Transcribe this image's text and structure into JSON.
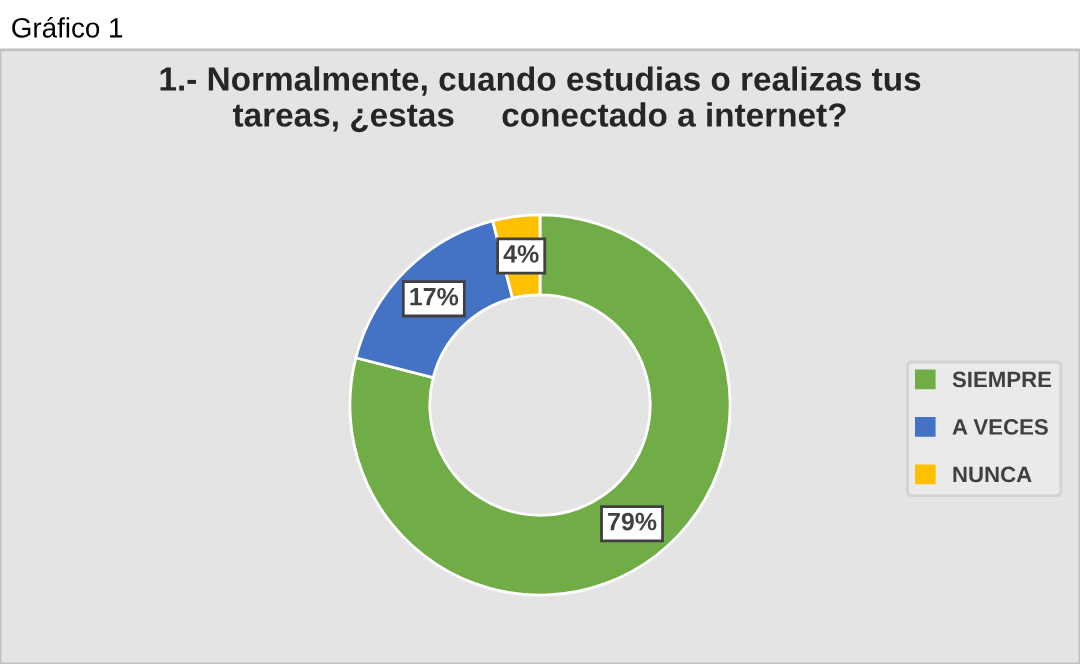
{
  "chart_data": {
    "type": "donut",
    "title": "1.- Normalmente, cuando estudias o realizas tus\ntareas, ¿estas     conectado a internet?",
    "annotations": [
      "Gráfico 1"
    ],
    "categories": [
      "SIEMPRE",
      "A VECES",
      "NUNCA"
    ],
    "values": [
      79,
      17,
      4
    ],
    "colors": [
      "#70ad47",
      "#4472c4",
      "#ffc000"
    ],
    "value_labels": [
      "79%",
      "17%",
      "4%"
    ],
    "legend": "right"
  }
}
